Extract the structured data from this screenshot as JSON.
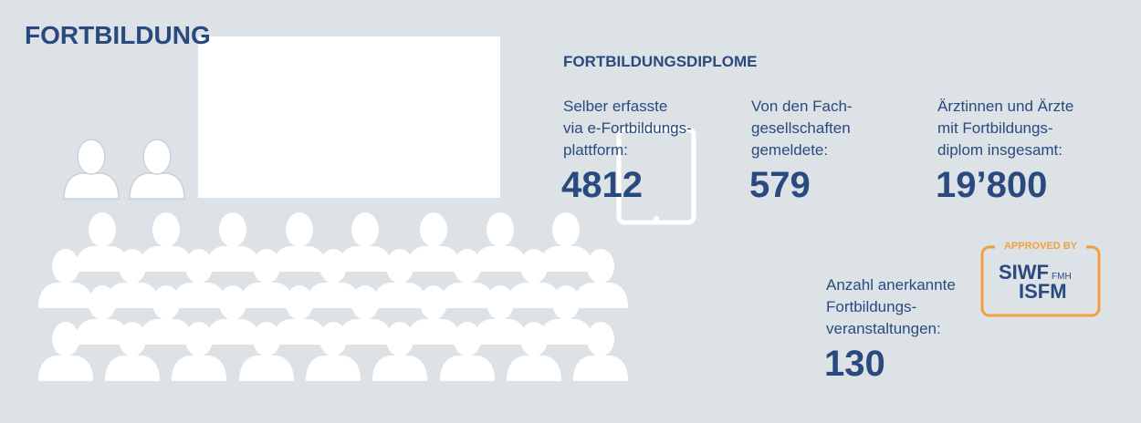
{
  "title": "FORTBILDUNG",
  "section_title": "FORTBILDUNGSDIPLOME",
  "stats": [
    {
      "label": [
        "Selber erfasste",
        "via e-Fortbildungs-",
        "plattform:"
      ],
      "value": "4812"
    },
    {
      "label": [
        "Von den Fach-",
        "gesellschaften",
        "gemeldete:"
      ],
      "value": "579"
    },
    {
      "label": [
        "Ärztinnen und Ärzte",
        "mit Fortbildungs-",
        "diplom insgesamt:"
      ],
      "value": "19’800"
    },
    {
      "label": [
        "Anzahl anerkannte",
        "Fortbildungs-",
        "veranstaltungen:"
      ],
      "value": "130"
    }
  ],
  "logo": {
    "top": "APPROVED BY",
    "line1": "SIWF",
    "sub": "FMH",
    "line2": "ISFM"
  }
}
